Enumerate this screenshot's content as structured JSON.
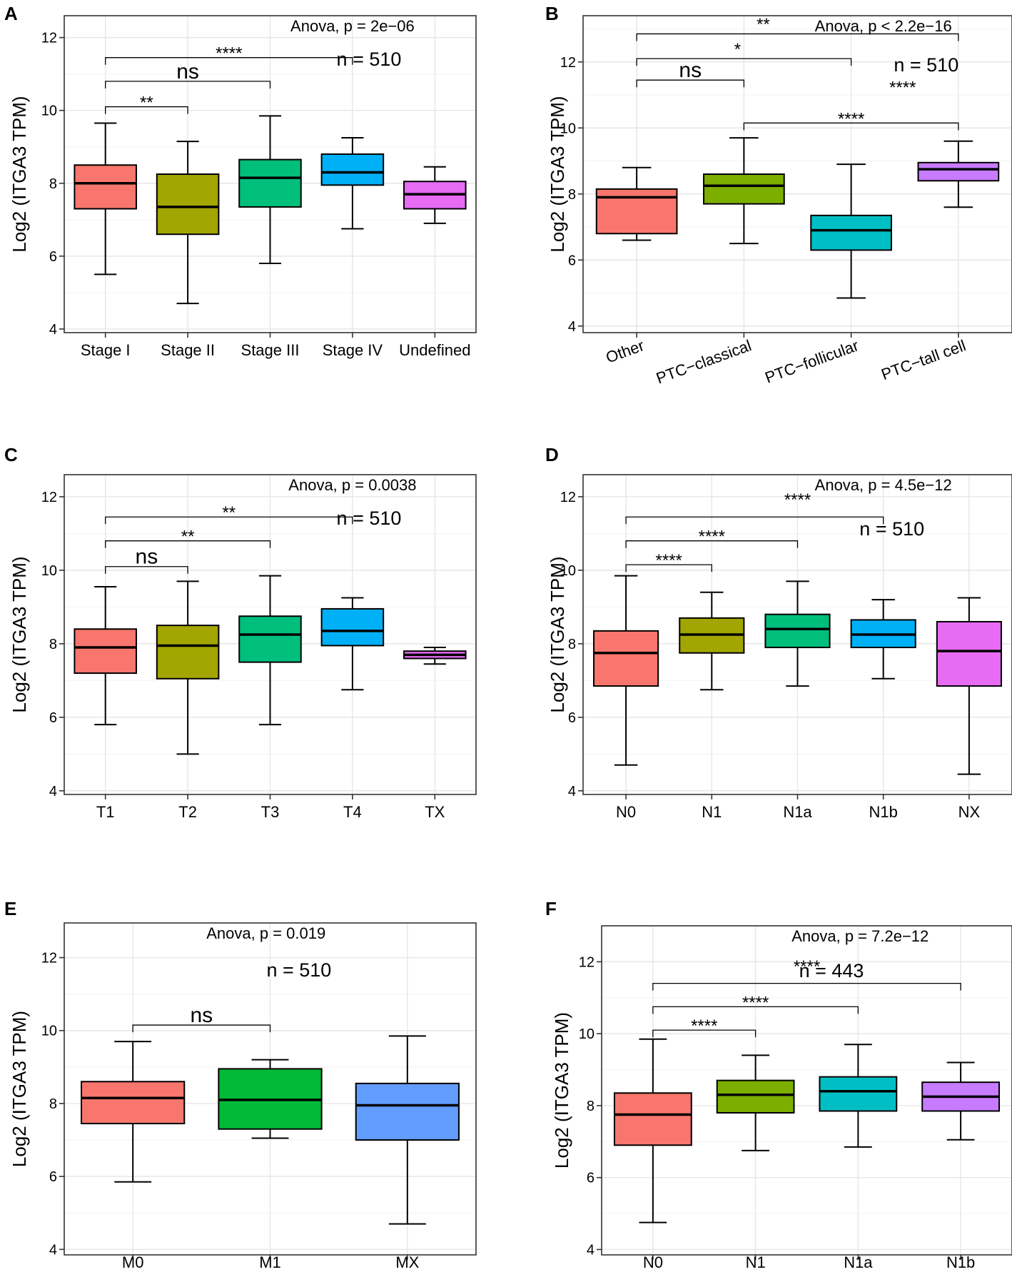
{
  "chart_data": [
    {
      "panel": "A",
      "type": "box",
      "ylabel": "Log2 (ITGA3 TPM)",
      "ylim": [
        3.9,
        12.6
      ],
      "yticks": [
        4,
        6,
        8,
        10,
        12
      ],
      "grid": true,
      "anova": "Anova, p = 2e−06",
      "n": "n = 510",
      "categories": [
        "Stage I",
        "Stage II",
        "Stage III",
        "Stage IV",
        "Undefined"
      ],
      "boxes": [
        {
          "min": 5.5,
          "q1": 7.3,
          "median": 8.0,
          "q3": 8.5,
          "max": 9.65,
          "color": "#F8766D"
        },
        {
          "min": 4.7,
          "q1": 6.6,
          "median": 7.35,
          "q3": 8.25,
          "max": 9.15,
          "color": "#A3A500"
        },
        {
          "min": 5.8,
          "q1": 7.35,
          "median": 8.15,
          "q3": 8.65,
          "max": 9.85,
          "color": "#00BF7D"
        },
        {
          "min": 6.75,
          "q1": 7.95,
          "median": 8.3,
          "q3": 8.8,
          "max": 9.25,
          "color": "#00B0F6"
        },
        {
          "min": 6.9,
          "q1": 7.3,
          "median": 7.7,
          "q3": 8.05,
          "max": 8.45,
          "color": "#E76BF3"
        }
      ],
      "comparisons": [
        {
          "a": 0,
          "b": 1,
          "label": "**",
          "y": 10.1,
          "big": false
        },
        {
          "a": 0,
          "b": 2,
          "label": "ns",
          "y": 10.8,
          "big": true
        },
        {
          "a": 0,
          "b": 3,
          "label": "****",
          "y": 11.45,
          "big": false
        }
      ]
    },
    {
      "panel": "B",
      "type": "box",
      "ylabel": "Log2 (ITGA3 TPM)",
      "ylim": [
        3.8,
        13.4
      ],
      "yticks": [
        4,
        6,
        8,
        10,
        12
      ],
      "grid": true,
      "rotate_x": true,
      "anova": "Anova, p < 2.2e−16",
      "extra_mark": "**",
      "n": "n = 510",
      "categories": [
        "Other",
        "PTC−classical",
        "PTC−follicular",
        "PTC−tall cell"
      ],
      "boxes": [
        {
          "min": 6.6,
          "q1": 6.8,
          "median": 7.9,
          "q3": 8.15,
          "max": 8.8,
          "color": "#F8766D"
        },
        {
          "min": 6.5,
          "q1": 7.7,
          "median": 8.25,
          "q3": 8.6,
          "max": 9.7,
          "color": "#7CAE00"
        },
        {
          "min": 4.85,
          "q1": 6.3,
          "median": 6.9,
          "q3": 7.35,
          "max": 8.9,
          "color": "#00BFC4"
        },
        {
          "min": 7.6,
          "q1": 8.4,
          "median": 8.75,
          "q3": 8.95,
          "max": 9.6,
          "color": "#C77CFF"
        }
      ],
      "comparisons": [
        {
          "a": 0,
          "b": 1,
          "label": "ns",
          "y": 11.45,
          "big": true
        },
        {
          "a": 1,
          "b": 3,
          "label": "****",
          "y": 10.15,
          "big": false
        },
        {
          "a": 0,
          "b": 2,
          "label": "****",
          "y": 12.1,
          "big": false,
          "label_x_frac": 0.745,
          "label_y": 11.1
        },
        {
          "a": 0,
          "b": 3,
          "label": "*",
          "y": 12.85,
          "big": false,
          "label_x_frac": 0.36,
          "label_y": 12.25
        }
      ]
    },
    {
      "panel": "C",
      "type": "box",
      "ylabel": "Log2 (ITGA3 TPM)",
      "ylim": [
        3.9,
        12.6
      ],
      "yticks": [
        4,
        6,
        8,
        10,
        12
      ],
      "grid": true,
      "anova": "Anova, p = 0.0038",
      "n": "n = 510",
      "categories": [
        "T1",
        "T2",
        "T3",
        "T4",
        "TX"
      ],
      "boxes": [
        {
          "min": 5.8,
          "q1": 7.2,
          "median": 7.9,
          "q3": 8.4,
          "max": 9.55,
          "color": "#F8766D"
        },
        {
          "min": 5.0,
          "q1": 7.05,
          "median": 7.95,
          "q3": 8.5,
          "max": 9.7,
          "color": "#A3A500"
        },
        {
          "min": 5.8,
          "q1": 7.5,
          "median": 8.25,
          "q3": 8.75,
          "max": 9.85,
          "color": "#00BF7D"
        },
        {
          "min": 6.75,
          "q1": 7.95,
          "median": 8.35,
          "q3": 8.95,
          "max": 9.25,
          "color": "#00B0F6"
        },
        {
          "min": 7.45,
          "q1": 7.6,
          "median": 7.7,
          "q3": 7.8,
          "max": 7.9,
          "color": "#E76BF3"
        }
      ],
      "comparisons": [
        {
          "a": 0,
          "b": 1,
          "label": "ns",
          "y": 10.1,
          "big": true
        },
        {
          "a": 0,
          "b": 2,
          "label": "**",
          "y": 10.8,
          "big": false
        },
        {
          "a": 0,
          "b": 3,
          "label": "**",
          "y": 11.45,
          "big": false
        }
      ]
    },
    {
      "panel": "D",
      "type": "box",
      "ylabel": "Log2 (ITGA3 TPM)",
      "ylim": [
        3.9,
        12.6
      ],
      "yticks": [
        4,
        6,
        8,
        10,
        12
      ],
      "grid": true,
      "anova": "Anova, p = 4.5e−12",
      "n": "n = 510",
      "categories": [
        "N0",
        "N1",
        "N1a",
        "N1b",
        "NX"
      ],
      "boxes": [
        {
          "min": 4.7,
          "q1": 6.85,
          "median": 7.75,
          "q3": 8.35,
          "max": 9.85,
          "color": "#F8766D"
        },
        {
          "min": 6.75,
          "q1": 7.75,
          "median": 8.25,
          "q3": 8.7,
          "max": 9.4,
          "color": "#A3A500"
        },
        {
          "min": 6.85,
          "q1": 7.9,
          "median": 8.4,
          "q3": 8.8,
          "max": 9.7,
          "color": "#00BF7D"
        },
        {
          "min": 7.05,
          "q1": 7.9,
          "median": 8.25,
          "q3": 8.65,
          "max": 9.2,
          "color": "#00B0F6"
        },
        {
          "min": 4.45,
          "q1": 6.85,
          "median": 7.8,
          "q3": 8.6,
          "max": 9.25,
          "color": "#E76BF3"
        }
      ],
      "comparisons": [
        {
          "a": 0,
          "b": 1,
          "label": "****",
          "y": 10.15,
          "big": false
        },
        {
          "a": 0,
          "b": 2,
          "label": "****",
          "y": 10.8,
          "big": false
        },
        {
          "a": 0,
          "b": 3,
          "label": "****",
          "y": 11.45,
          "big": false,
          "label_x_frac": 0.5,
          "label_y": 11.8
        }
      ]
    },
    {
      "panel": "E",
      "type": "box",
      "ylabel": "Log2 (ITGA3 TPM)",
      "ylim": [
        3.85,
        12.95
      ],
      "yticks": [
        4,
        6,
        8,
        10,
        12
      ],
      "grid": true,
      "anova": "Anova, p = 0.019",
      "n": "n = 510",
      "categories": [
        "M0",
        "M1",
        "MX"
      ],
      "boxes": [
        {
          "min": 5.85,
          "q1": 7.45,
          "median": 8.15,
          "q3": 8.6,
          "max": 9.7,
          "color": "#F8766D"
        },
        {
          "min": 7.05,
          "q1": 7.3,
          "median": 8.1,
          "q3": 8.95,
          "max": 9.2,
          "color": "#00BA38"
        },
        {
          "min": 4.7,
          "q1": 7.0,
          "median": 7.95,
          "q3": 8.55,
          "max": 9.85,
          "color": "#619CFF"
        }
      ],
      "comparisons": [
        {
          "a": 0,
          "b": 1,
          "label": "ns",
          "y": 10.15,
          "big": true
        }
      ]
    },
    {
      "panel": "F",
      "type": "box",
      "ylabel": "Log2 (ITGA3 TPM)",
      "ylim": [
        3.85,
        13.0
      ],
      "yticks": [
        4,
        6,
        8,
        10,
        12
      ],
      "grid": true,
      "anova": "Anova, p = 7.2e−12",
      "n": "n = 443",
      "categories": [
        "N0",
        "N1",
        "N1a",
        "N1b"
      ],
      "boxes": [
        {
          "min": 4.75,
          "q1": 6.9,
          "median": 7.75,
          "q3": 8.35,
          "max": 9.85,
          "color": "#F8766D"
        },
        {
          "min": 6.75,
          "q1": 7.8,
          "median": 8.3,
          "q3": 8.7,
          "max": 9.4,
          "color": "#7CAE00"
        },
        {
          "min": 6.85,
          "q1": 7.85,
          "median": 8.4,
          "q3": 8.8,
          "max": 9.7,
          "color": "#00BFC4"
        },
        {
          "min": 7.05,
          "q1": 7.85,
          "median": 8.25,
          "q3": 8.65,
          "max": 9.2,
          "color": "#C77CFF"
        }
      ],
      "comparisons": [
        {
          "a": 0,
          "b": 1,
          "label": "****",
          "y": 10.1,
          "big": false
        },
        {
          "a": 0,
          "b": 2,
          "label": "****",
          "y": 10.75,
          "big": false
        },
        {
          "a": 0,
          "b": 3,
          "label": "****",
          "y": 11.4,
          "big": false,
          "label_x_frac": 0.5,
          "label_y": 11.75
        }
      ]
    }
  ]
}
